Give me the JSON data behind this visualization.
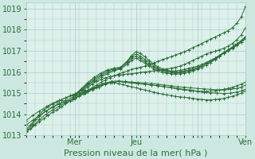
{
  "xlabel": "Pression niveau de la mer( hPa )",
  "bg_color": "#cce8e0",
  "plot_bg_color": "#ddf0ea",
  "grid_color": "#aacccc",
  "line_color": "#2d6e3a",
  "ylim": [
    1013.0,
    1019.3
  ],
  "xlim": [
    0,
    100
  ],
  "yticks": [
    1013,
    1014,
    1015,
    1016,
    1017,
    1018,
    1019
  ],
  "xtick_positions": [
    22,
    50,
    78,
    100
  ],
  "xtick_labels": [
    "Mer",
    "Jeu",
    "",
    "Ven"
  ],
  "series": [
    {
      "x": [
        0,
        2,
        4,
        6,
        8,
        10,
        12,
        14,
        16,
        18,
        20,
        22,
        24,
        26,
        28,
        30,
        32,
        34,
        36,
        38,
        40,
        42,
        44,
        46,
        48,
        50,
        52,
        54,
        56,
        58,
        60,
        62,
        64,
        66,
        68,
        70,
        72,
        74,
        76,
        78,
        80,
        82,
        84,
        86,
        88,
        90,
        92,
        94,
        96,
        98,
        100
      ],
      "y": [
        1013.2,
        1013.3,
        1013.5,
        1013.65,
        1013.8,
        1013.95,
        1014.1,
        1014.2,
        1014.35,
        1014.5,
        1014.62,
        1014.75,
        1014.88,
        1015.0,
        1015.12,
        1015.25,
        1015.38,
        1015.5,
        1015.62,
        1015.72,
        1015.82,
        1015.9,
        1015.98,
        1016.05,
        1016.12,
        1016.18,
        1016.22,
        1016.28,
        1016.35,
        1016.42,
        1016.5,
        1016.58,
        1016.65,
        1016.72,
        1016.8,
        1016.88,
        1016.95,
        1017.05,
        1017.15,
        1017.25,
        1017.35,
        1017.45,
        1017.55,
        1017.65,
        1017.75,
        1017.85,
        1017.95,
        1018.1,
        1018.3,
        1018.6,
        1019.1
      ]
    },
    {
      "x": [
        0,
        2,
        4,
        6,
        8,
        10,
        12,
        14,
        16,
        18,
        20,
        22,
        24,
        26,
        28,
        30,
        32,
        34,
        36,
        38,
        40,
        42,
        44,
        46,
        48,
        50,
        52,
        54,
        56,
        58,
        60,
        62,
        64,
        66,
        68,
        70,
        72,
        74,
        76,
        78,
        80,
        82,
        84,
        86,
        88,
        90,
        92,
        94,
        96,
        98,
        100
      ],
      "y": [
        1013.3,
        1013.5,
        1013.75,
        1014.0,
        1014.2,
        1014.35,
        1014.48,
        1014.58,
        1014.68,
        1014.78,
        1014.88,
        1014.95,
        1015.05,
        1015.15,
        1015.28,
        1015.42,
        1015.55,
        1015.65,
        1015.72,
        1015.78,
        1015.82,
        1015.85,
        1015.88,
        1015.9,
        1015.92,
        1015.95,
        1015.98,
        1016.0,
        1016.02,
        1016.05,
        1016.08,
        1016.12,
        1016.15,
        1016.18,
        1016.22,
        1016.28,
        1016.35,
        1016.45,
        1016.55,
        1016.65,
        1016.75,
        1016.85,
        1016.92,
        1016.98,
        1017.05,
        1017.12,
        1017.22,
        1017.35,
        1017.52,
        1017.75,
        1018.1
      ]
    },
    {
      "x": [
        0,
        3,
        6,
        9,
        12,
        15,
        18,
        21,
        24,
        27,
        30,
        33,
        36,
        39,
        42,
        45,
        48,
        51,
        54,
        57,
        60,
        63,
        66,
        69,
        72,
        75,
        78,
        81,
        84,
        87,
        90,
        93,
        96,
        98,
        100
      ],
      "y": [
        1013.2,
        1013.55,
        1013.9,
        1014.15,
        1014.35,
        1014.52,
        1014.65,
        1014.8,
        1014.95,
        1015.08,
        1015.2,
        1015.35,
        1015.48,
        1015.55,
        1015.58,
        1015.55,
        1015.52,
        1015.5,
        1015.48,
        1015.45,
        1015.42,
        1015.38,
        1015.35,
        1015.3,
        1015.28,
        1015.25,
        1015.22,
        1015.2,
        1015.18,
        1015.15,
        1015.15,
        1015.18,
        1015.22,
        1015.28,
        1015.38
      ]
    },
    {
      "x": [
        0,
        3,
        6,
        9,
        12,
        15,
        18,
        21,
        24,
        27,
        30,
        33,
        36,
        39,
        42,
        45,
        48,
        51,
        54,
        57,
        60,
        63,
        66,
        69,
        72,
        75,
        78,
        81,
        84,
        87,
        90,
        93,
        96,
        98,
        100
      ],
      "y": [
        1013.15,
        1013.45,
        1013.75,
        1014.0,
        1014.2,
        1014.38,
        1014.55,
        1014.7,
        1014.85,
        1015.0,
        1015.15,
        1015.28,
        1015.42,
        1015.5,
        1015.55,
        1015.52,
        1015.48,
        1015.45,
        1015.42,
        1015.38,
        1015.35,
        1015.3,
        1015.25,
        1015.2,
        1015.15,
        1015.12,
        1015.08,
        1015.05,
        1015.02,
        1015.0,
        1014.98,
        1015.0,
        1015.05,
        1015.1,
        1015.18
      ]
    },
    {
      "x": [
        22,
        25,
        28,
        31,
        34,
        37,
        40,
        43,
        46,
        48,
        50,
        52,
        54,
        56,
        58,
        60,
        62,
        64,
        66,
        68,
        70,
        72,
        74,
        76,
        78,
        80,
        82,
        84,
        86,
        88,
        90,
        92,
        94,
        96,
        98,
        100
      ],
      "y": [
        1014.88,
        1015.2,
        1015.5,
        1015.75,
        1015.95,
        1016.1,
        1016.18,
        1016.22,
        1016.52,
        1016.78,
        1016.95,
        1016.88,
        1016.72,
        1016.55,
        1016.38,
        1016.25,
        1016.15,
        1016.08,
        1016.05,
        1016.05,
        1016.08,
        1016.12,
        1016.18,
        1016.22,
        1016.28,
        1016.35,
        1016.45,
        1016.55,
        1016.65,
        1016.78,
        1016.92,
        1017.05,
        1017.18,
        1017.32,
        1017.48,
        1017.68
      ]
    },
    {
      "x": [
        22,
        25,
        28,
        31,
        34,
        37,
        40,
        43,
        46,
        48,
        50,
        52,
        54,
        56,
        58,
        60,
        62,
        64,
        66,
        68,
        70,
        72,
        74,
        76,
        78,
        80,
        82,
        84,
        86,
        88,
        90,
        92,
        94,
        96,
        98,
        100
      ],
      "y": [
        1014.9,
        1015.18,
        1015.45,
        1015.68,
        1015.88,
        1016.05,
        1016.15,
        1016.22,
        1016.48,
        1016.72,
        1016.85,
        1016.75,
        1016.6,
        1016.45,
        1016.3,
        1016.18,
        1016.1,
        1016.05,
        1016.02,
        1016.0,
        1016.02,
        1016.05,
        1016.1,
        1016.15,
        1016.22,
        1016.3,
        1016.4,
        1016.52,
        1016.65,
        1016.78,
        1016.92,
        1017.05,
        1017.18,
        1017.32,
        1017.48,
        1017.65
      ]
    },
    {
      "x": [
        22,
        25,
        28,
        31,
        34,
        37,
        40,
        43,
        46,
        48,
        50,
        52,
        54,
        56,
        58,
        60,
        62,
        64,
        66,
        68,
        70,
        72,
        74,
        76,
        78,
        80,
        82,
        84,
        86,
        88,
        90,
        92,
        94,
        96,
        98,
        100
      ],
      "y": [
        1014.92,
        1015.15,
        1015.4,
        1015.62,
        1015.82,
        1015.98,
        1016.1,
        1016.18,
        1016.42,
        1016.65,
        1016.75,
        1016.65,
        1016.5,
        1016.35,
        1016.22,
        1016.12,
        1016.05,
        1016.0,
        1015.98,
        1015.95,
        1015.98,
        1016.0,
        1016.05,
        1016.1,
        1016.18,
        1016.28,
        1016.38,
        1016.5,
        1016.62,
        1016.75,
        1016.9,
        1017.02,
        1017.15,
        1017.28,
        1017.42,
        1017.6
      ]
    },
    {
      "x": [
        22,
        25,
        28,
        31,
        34,
        37,
        40,
        43,
        46,
        48,
        50,
        52,
        54,
        56,
        58,
        60,
        62,
        64,
        66,
        68,
        70,
        72,
        74,
        76,
        78,
        80,
        82,
        84,
        86,
        88,
        90,
        92,
        94,
        96,
        98,
        100
      ],
      "y": [
        1014.95,
        1015.12,
        1015.35,
        1015.55,
        1015.75,
        1015.92,
        1016.05,
        1016.15,
        1016.35,
        1016.55,
        1016.65,
        1016.55,
        1016.42,
        1016.28,
        1016.15,
        1016.05,
        1015.98,
        1015.95,
        1015.92,
        1015.9,
        1015.92,
        1015.95,
        1016.0,
        1016.05,
        1016.12,
        1016.22,
        1016.32,
        1016.45,
        1016.58,
        1016.72,
        1016.88,
        1017.0,
        1017.12,
        1017.25,
        1017.4,
        1017.58
      ]
    },
    {
      "x": [
        0,
        3,
        6,
        9,
        12,
        15,
        18,
        21,
        24,
        27,
        30,
        33,
        36,
        39,
        42,
        45,
        48,
        51,
        54,
        57,
        60,
        63,
        66,
        69,
        72,
        74,
        76,
        78,
        80,
        82,
        84,
        86,
        88,
        90,
        92,
        94,
        96,
        98,
        100
      ],
      "y": [
        1013.7,
        1013.95,
        1014.15,
        1014.35,
        1014.52,
        1014.65,
        1014.78,
        1014.88,
        1014.98,
        1015.1,
        1015.22,
        1015.35,
        1015.45,
        1015.52,
        1015.55,
        1015.52,
        1015.48,
        1015.45,
        1015.42,
        1015.38,
        1015.35,
        1015.3,
        1015.28,
        1015.22,
        1015.18,
        1015.15,
        1015.12,
        1015.1,
        1015.08,
        1015.08,
        1015.1,
        1015.12,
        1015.15,
        1015.18,
        1015.22,
        1015.28,
        1015.35,
        1015.42,
        1015.52
      ]
    },
    {
      "x": [
        0,
        3,
        6,
        9,
        12,
        15,
        18,
        21,
        22,
        24,
        26,
        28,
        30,
        32,
        34,
        36,
        38,
        40,
        42,
        44,
        46,
        48,
        50,
        52,
        54,
        56,
        58,
        60,
        62,
        64,
        66,
        68,
        70,
        72,
        74,
        76,
        78,
        80,
        82,
        84,
        86,
        88,
        90,
        92,
        94,
        96,
        98,
        100
      ],
      "y": [
        1013.5,
        1013.72,
        1013.95,
        1014.15,
        1014.32,
        1014.48,
        1014.6,
        1014.72,
        1014.78,
        1014.88,
        1014.98,
        1015.08,
        1015.18,
        1015.28,
        1015.38,
        1015.45,
        1015.48,
        1015.48,
        1015.45,
        1015.4,
        1015.35,
        1015.3,
        1015.25,
        1015.2,
        1015.15,
        1015.1,
        1015.05,
        1015.0,
        1014.95,
        1014.92,
        1014.88,
        1014.85,
        1014.82,
        1014.8,
        1014.78,
        1014.75,
        1014.72,
        1014.7,
        1014.68,
        1014.68,
        1014.7,
        1014.72,
        1014.75,
        1014.8,
        1014.85,
        1014.92,
        1015.0,
        1015.1
      ]
    }
  ]
}
